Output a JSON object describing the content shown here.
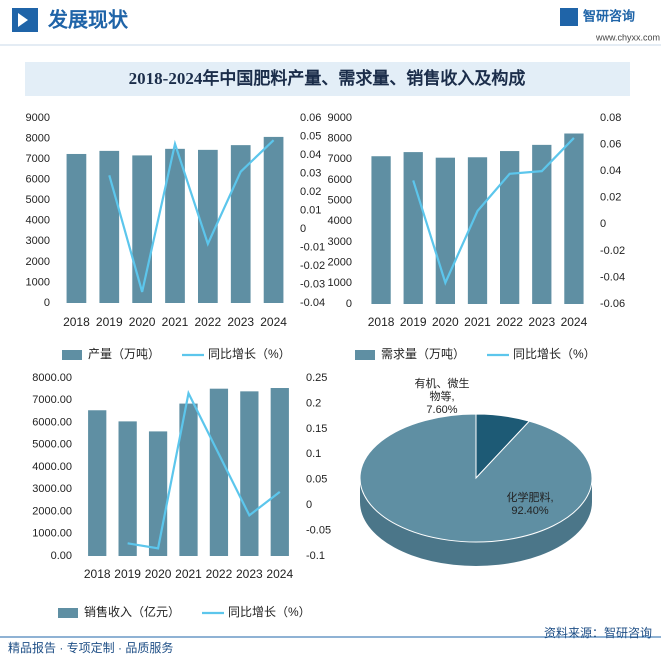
{
  "header": {
    "title": "发展现状",
    "logo": "智研咨询",
    "url": "www.chyxx.com"
  },
  "title": "2018-2024年中国肥料产量、需求量、销售收入及构成",
  "chart_data": [
    {
      "type": "combo",
      "categories": [
        "2018",
        "2019",
        "2020",
        "2021",
        "2022",
        "2023",
        "2024"
      ],
      "series": [
        {
          "name": "产量（万吨）",
          "type": "bar",
          "color": "#5f8fa3",
          "values": [
            7250,
            7400,
            7180,
            7500,
            7450,
            7680,
            8080
          ]
        },
        {
          "name": "同比增长（%）",
          "type": "line",
          "axis": "y2",
          "color": "#5cc6ec",
          "values": [
            null,
            0.029,
            -0.034,
            0.046,
            -0.008,
            0.031,
            0.048
          ]
        }
      ],
      "ylim": [
        0,
        9000
      ],
      "yticks": [
        0,
        1000,
        2000,
        3000,
        4000,
        5000,
        6000,
        7000,
        8000,
        9000
      ],
      "y2lim": [
        -0.04,
        0.06
      ],
      "y2ticks": [
        -0.04,
        -0.03,
        -0.02,
        -0.01,
        0,
        0.01,
        0.02,
        0.03,
        0.04,
        0.05,
        0.06
      ]
    },
    {
      "type": "combo",
      "categories": [
        "2018",
        "2019",
        "2020",
        "2021",
        "2022",
        "2023",
        "2024"
      ],
      "series": [
        {
          "name": "需求量（万吨）",
          "type": "bar",
          "color": "#5f8fa3",
          "values": [
            7150,
            7350,
            7080,
            7100,
            7400,
            7700,
            8250
          ]
        },
        {
          "name": "同比增长（%）",
          "type": "line",
          "axis": "y2",
          "color": "#5cc6ec",
          "values": [
            null,
            0.033,
            -0.044,
            0.01,
            0.038,
            0.04,
            0.065
          ]
        }
      ],
      "ylim": [
        0,
        9000
      ],
      "yticks": [
        0,
        1000,
        2000,
        3000,
        4000,
        5000,
        6000,
        7000,
        8000,
        9000
      ],
      "y2lim": [
        -0.06,
        0.08
      ],
      "y2ticks": [
        -0.06,
        -0.04,
        -0.02,
        0,
        0.02,
        0.04,
        0.06,
        0.08
      ]
    },
    {
      "type": "combo",
      "categories": [
        "2018",
        "2019",
        "2020",
        "2021",
        "2022",
        "2023",
        "2024"
      ],
      "series": [
        {
          "name": "销售收入（亿元）",
          "type": "bar",
          "color": "#5f8fa3",
          "values": [
            6550,
            6050,
            5600,
            6850,
            7520,
            7400,
            7550
          ]
        },
        {
          "name": "同比增长（%）",
          "type": "line",
          "axis": "y2",
          "color": "#5cc6ec",
          "values": [
            null,
            -0.075,
            -0.085,
            0.22,
            0.1,
            -0.02,
            0.026
          ]
        }
      ],
      "ylim": [
        0,
        8000
      ],
      "yticks": [
        {
          "value": 0,
          "label": "0.00"
        },
        {
          "value": 1000,
          "label": "1000.00"
        },
        {
          "value": 2000,
          "label": "2000.00"
        },
        {
          "value": 3000,
          "label": "3000.00"
        },
        {
          "value": 4000,
          "label": "4000.00"
        },
        {
          "value": 5000,
          "label": "5000.00"
        },
        {
          "value": 6000,
          "label": "6000.00"
        },
        {
          "value": 7000,
          "label": "7000.00"
        },
        {
          "value": 8000,
          "label": "8000.00"
        }
      ],
      "y2lim": [
        -0.1,
        0.25
      ],
      "y2ticks": [
        -0.1,
        -0.05,
        0,
        0.05,
        0.1,
        0.15,
        0.2,
        0.25
      ]
    },
    {
      "type": "pie",
      "categories": [
        "化学肥料,",
        "有机、微生物等,"
      ],
      "values": [
        92.4,
        7.6
      ],
      "value_labels": [
        "92.40%",
        "7.60%"
      ],
      "colors": [
        "#5f8fa3",
        "#1d5a75"
      ]
    }
  ],
  "footer": {
    "left": "精品报告 · 专项定制 · 品质服务",
    "right": "资料来源：智研咨询"
  }
}
